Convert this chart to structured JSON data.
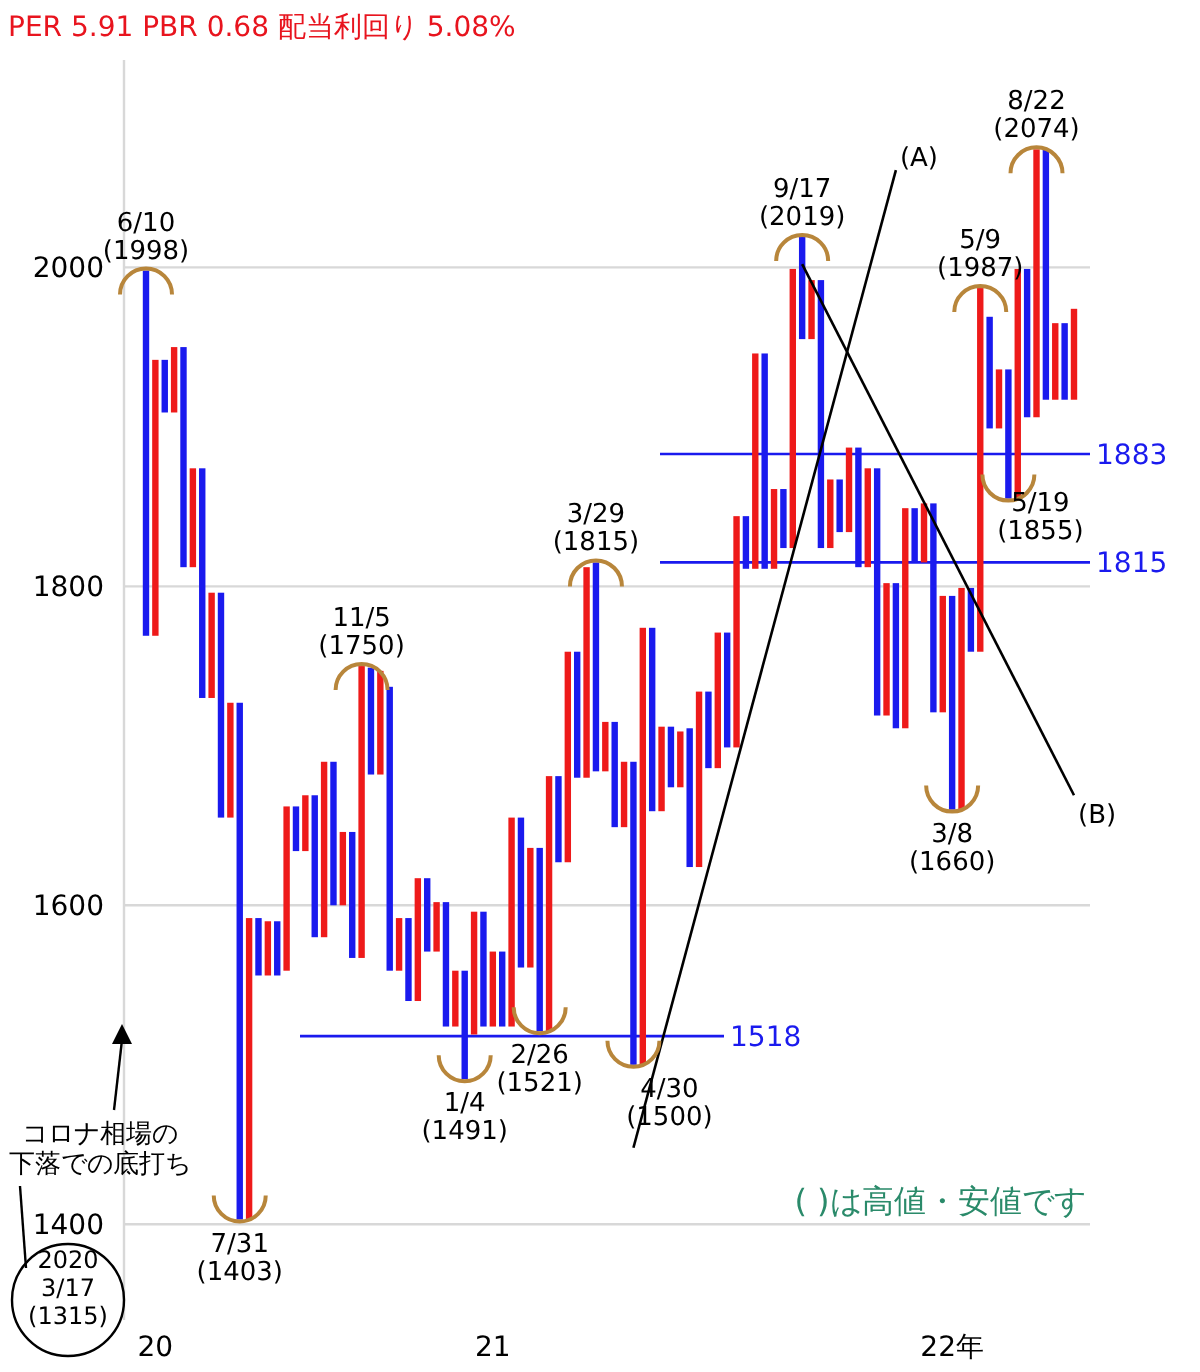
{
  "chart_data": {
    "type": "bar",
    "title": "PER 5.91 PBR 0.68 配当利回り 5.08%",
    "categories": [
      null,
      "20",
      null,
      null,
      null,
      null,
      null,
      null,
      null,
      null,
      null,
      null,
      null,
      null,
      null,
      null,
      null,
      null,
      null,
      null,
      null,
      null,
      null,
      null,
      null,
      null,
      null,
      null,
      null,
      null,
      null,
      null,
      null,
      null,
      null,
      null,
      null,
      "21",
      null,
      null,
      null,
      null,
      null,
      null,
      null,
      null,
      null,
      null,
      null,
      null,
      null,
      null,
      null,
      null,
      null,
      null,
      null,
      null,
      null,
      null,
      null,
      null,
      null,
      null,
      null,
      null,
      null,
      null,
      null,
      null,
      null,
      null,
      null,
      null,
      null,
      null,
      null,
      null,
      null,
      null,
      null,
      null,
      null,
      null,
      null,
      null,
      "22年",
      null,
      null,
      null,
      null,
      null,
      null,
      null,
      null,
      null,
      null,
      null,
      null,
      null
    ],
    "series": [
      {
        "base": [
          1769,
          1769,
          1909,
          1909,
          1812,
          1812,
          1730,
          1730,
          1655,
          1655,
          1403,
          1403,
          1556,
          1556,
          1556,
          1559,
          1634,
          1634,
          1580,
          1580,
          1600,
          1600,
          1567,
          1567,
          1682,
          1682,
          1559,
          1559,
          1540,
          1540,
          1571,
          1571,
          1524,
          1524,
          1491,
          1519,
          1524,
          1524,
          1524,
          1524,
          1561,
          1561,
          1521,
          1521,
          1627,
          1627,
          1680,
          1680,
          1684,
          1684,
          1649,
          1649,
          1500,
          1500,
          1659,
          1659,
          1674,
          1674,
          1624,
          1624,
          1686,
          1686,
          1699,
          1699,
          1811,
          1811,
          1811,
          1811,
          1824,
          1824,
          1955,
          1955,
          1824,
          1824,
          1834,
          1834,
          1812,
          1812,
          1719,
          1719,
          1711,
          1711,
          1815,
          1815,
          1721,
          1721,
          1660,
          1660,
          1759,
          1759,
          1899,
          1899,
          1855,
          1855,
          1906,
          1906,
          1917,
          1917,
          1917,
          1917
        ],
        "values": [
          229,
          173,
          33,
          41,
          138,
          62,
          144,
          66,
          141,
          72,
          324,
          189,
          36,
          34,
          34,
          103,
          28,
          35,
          89,
          110,
          90,
          46,
          79,
          183,
          67,
          65,
          178,
          33,
          52,
          77,
          46,
          31,
          78,
          35,
          68,
          77,
          72,
          47,
          47,
          131,
          94,
          75,
          115,
          160,
          54,
          132,
          79,
          132,
          131,
          31,
          66,
          41,
          190,
          274,
          115,
          53,
          38,
          35,
          87,
          110,
          48,
          85,
          72,
          145,
          33,
          135,
          135,
          50,
          37,
          175,
          64,
          37,
          168,
          43,
          33,
          53,
          75,
          62,
          155,
          83,
          91,
          138,
          34,
          37,
          131,
          73,
          134,
          139,
          40,
          228,
          70,
          37,
          81,
          144,
          93,
          168,
          157,
          48,
          48,
          57
        ],
        "colors": [
          "#1a1aee",
          "#ee1a1a",
          "#1a1aee",
          "#ee1a1a",
          "#1a1aee",
          "#ee1a1a",
          "#1a1aee",
          "#ee1a1a",
          "#1a1aee",
          "#ee1a1a",
          "#1a1aee",
          "#ee1a1a",
          "#1a1aee",
          "#ee1a1a",
          "#1a1aee",
          "#ee1a1a",
          "#1a1aee",
          "#ee1a1a",
          "#1a1aee",
          "#ee1a1a",
          "#1a1aee",
          "#ee1a1a",
          "#1a1aee",
          "#ee1a1a",
          "#1a1aee",
          "#ee1a1a",
          "#1a1aee",
          "#ee1a1a",
          "#1a1aee",
          "#ee1a1a",
          "#1a1aee",
          "#ee1a1a",
          "#1a1aee",
          "#ee1a1a",
          "#1a1aee",
          "#ee1a1a",
          "#1a1aee",
          "#ee1a1a",
          "#1a1aee",
          "#ee1a1a",
          "#1a1aee",
          "#ee1a1a",
          "#1a1aee",
          "#ee1a1a",
          "#1a1aee",
          "#ee1a1a",
          "#1a1aee",
          "#ee1a1a",
          "#1a1aee",
          "#ee1a1a",
          "#1a1aee",
          "#ee1a1a",
          "#1a1aee",
          "#ee1a1a",
          "#1a1aee",
          "#ee1a1a",
          "#1a1aee",
          "#ee1a1a",
          "#1a1aee",
          "#ee1a1a",
          "#1a1aee",
          "#ee1a1a",
          "#1a1aee",
          "#ee1a1a",
          "#1a1aee",
          "#ee1a1a",
          "#1a1aee",
          "#ee1a1a",
          "#1a1aee",
          "#ee1a1a",
          "#1a1aee",
          "#ee1a1a",
          "#1a1aee",
          "#ee1a1a",
          "#1a1aee",
          "#ee1a1a",
          "#1a1aee",
          "#ee1a1a",
          "#1a1aee",
          "#ee1a1a",
          "#1a1aee",
          "#ee1a1a",
          "#1a1aee",
          "#ee1a1a",
          "#1a1aee",
          "#ee1a1a",
          "#1a1aee",
          "#ee1a1a",
          "#1a1aee",
          "#ee1a1a",
          "#1a1aee",
          "#ee1a1a",
          "#1a1aee",
          "#ee1a1a",
          "#1a1aee",
          "#ee1a1a",
          "#1a1aee",
          "#ee1a1a",
          "#1a1aee",
          "#ee1a1a"
        ]
      },
      {
        "type": "line",
        "name": "(A)",
        "color": "#000000",
        "values": [
          null,
          null,
          null,
          null,
          null,
          null,
          null,
          null,
          null,
          null,
          null,
          null,
          null,
          null,
          null,
          null,
          null,
          null,
          null,
          null,
          null,
          null,
          null,
          null,
          null,
          null,
          null,
          null,
          null,
          null,
          null,
          null,
          null,
          null,
          null,
          null,
          null,
          null,
          null,
          null,
          null,
          null,
          null,
          null,
          null,
          null,
          null,
          null,
          null,
          null,
          null,
          null,
          1448,
          null,
          null,
          null,
          null,
          null,
          null,
          null,
          null,
          null,
          null,
          null,
          null,
          null,
          null,
          null,
          null,
          null,
          null,
          null,
          null,
          null,
          null,
          null,
          null,
          null,
          null,
          null,
          2061,
          null,
          null,
          null,
          null,
          null,
          null,
          null,
          null,
          null,
          null,
          null,
          null,
          null,
          null,
          null,
          null,
          null,
          null,
          null
        ]
      },
      {
        "type": "line",
        "name": "(B)",
        "color": "#000000",
        "values": [
          null,
          null,
          null,
          null,
          null,
          null,
          null,
          null,
          null,
          null,
          null,
          null,
          null,
          null,
          null,
          null,
          null,
          null,
          null,
          null,
          null,
          null,
          null,
          null,
          null,
          null,
          null,
          null,
          null,
          null,
          null,
          null,
          null,
          null,
          null,
          null,
          null,
          null,
          null,
          null,
          null,
          null,
          null,
          null,
          null,
          null,
          null,
          null,
          null,
          null,
          null,
          null,
          null,
          null,
          null,
          null,
          null,
          null,
          null,
          null,
          null,
          null,
          null,
          null,
          null,
          null,
          null,
          null,
          null,
          null,
          2002,
          null,
          null,
          null,
          null,
          null,
          null,
          null,
          null,
          null,
          null,
          null,
          null,
          null,
          null,
          null,
          null,
          null,
          null,
          null,
          null,
          null,
          null,
          null,
          null,
          null,
          null,
          null,
          null,
          1669
        ]
      }
    ],
    "ylim": [
      1340,
      2130
    ],
    "yticks": [
      1400,
      1600,
      1800,
      2000
    ],
    "grid": "y",
    "ref_lines": [
      {
        "axis": "y",
        "value": 1883,
        "label": "1883",
        "color": "#1a1aee"
      },
      {
        "axis": "y",
        "value": 1815,
        "label": "1815",
        "color": "#1a1aee"
      },
      {
        "axis": "y",
        "value": 1518,
        "label": "1518",
        "color": "#1a1aee"
      }
    ],
    "annotations": [
      "6/10\n(1998)",
      "7/31\n(1403)",
      "11/5\n(1750)",
      "1/4\n(1491)",
      "2/26\n(1521)",
      "3/29\n(1815)",
      "4/30\n(1500)",
      "9/17\n(2019)",
      "3/8\n(1660)",
      "5/9\n(1987)",
      "5/19\n(1855)",
      "8/22\n(2074)",
      "( )は高値・安値です",
      "コロナ相場の下落での底打ち",
      "2020\n3/17\n(1315)"
    ]
  }
}
